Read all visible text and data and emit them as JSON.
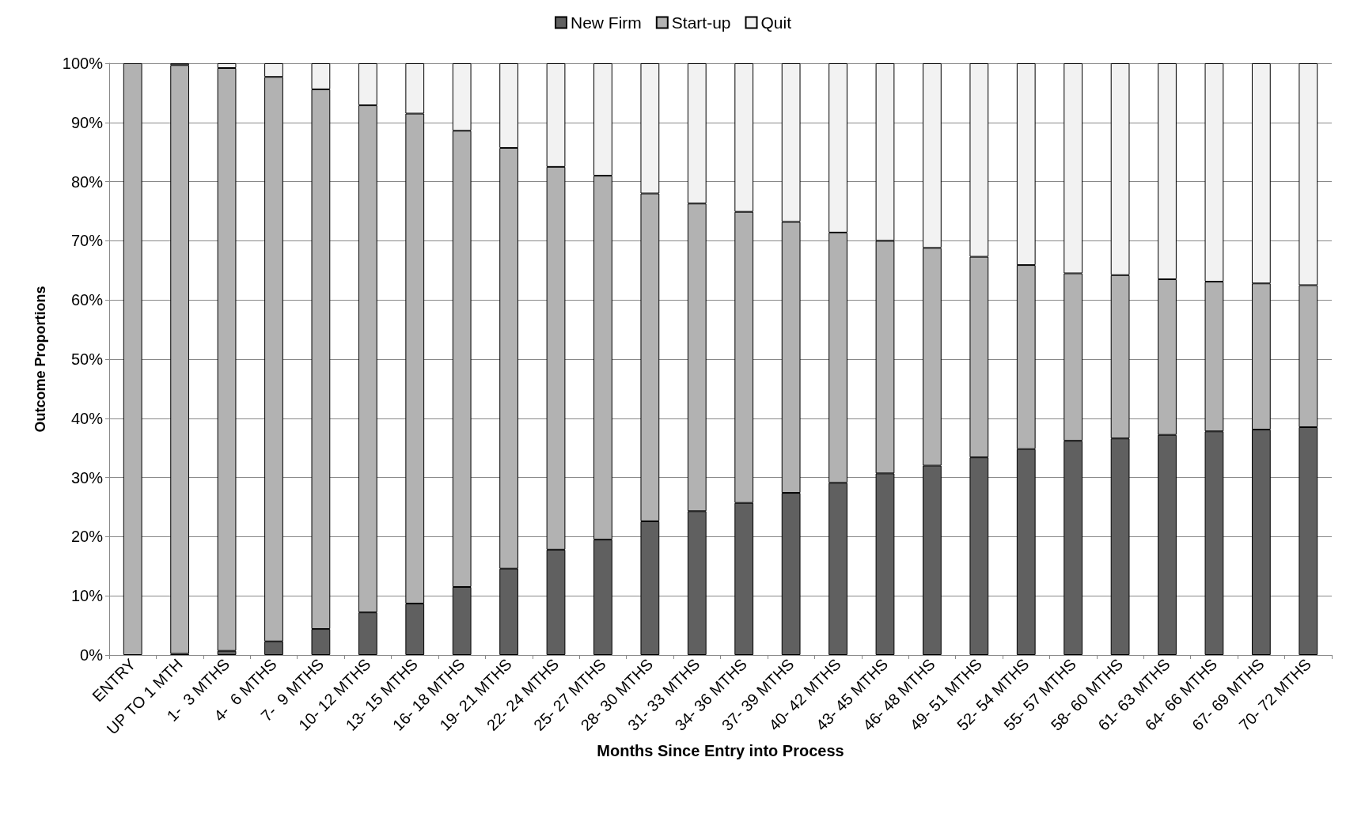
{
  "chart_data": {
    "type": "bar",
    "stacked": true,
    "xlabel": "Months Since Entry into Process",
    "ylabel": "Outcome Proportions",
    "categories": [
      "ENTRY",
      "UP TO 1 MTH",
      "1-  3 MTHS",
      "4-  6 MTHS",
      "7-  9 MTHS",
      "10- 12 MTHS",
      "13- 15 MTHS",
      "16- 18 MTHS",
      "19- 21 MTHS",
      "22- 24 MTHS",
      "25- 27 MTHS",
      "28- 30 MTHS",
      "31- 33 MTHS",
      "34- 36 MTHS",
      "37- 39 MTHS",
      "40- 42 MTHS",
      "43- 45 MTHS",
      "46- 48 MTHS",
      "49- 51 MTHS",
      "52- 54 MTHS",
      "55- 57 MTHS",
      "58- 60 MTHS",
      "61- 63 MTHS",
      "64- 66 MTHS",
      "67- 69 MTHS",
      "70- 72 MTHS"
    ],
    "series": [
      {
        "name": "New Firm",
        "color": "#606060",
        "values": [
          0,
          0.2,
          0.7,
          2.3,
          4.4,
          7.2,
          8.7,
          11.5,
          14.6,
          17.8,
          19.5,
          22.6,
          24.3,
          25.7,
          27.4,
          29.1,
          30.7,
          32.0,
          33.4,
          34.8,
          36.2,
          36.6,
          37.2,
          37.8,
          38.1,
          38.5
        ]
      },
      {
        "name": "Start-up",
        "color": "#b2b2b2",
        "values": [
          100,
          99.5,
          98.5,
          95.4,
          91.2,
          85.7,
          82.8,
          77.1,
          71.1,
          64.7,
          61.5,
          55.4,
          52.0,
          49.2,
          45.8,
          42.3,
          39.3,
          36.8,
          33.9,
          31.1,
          28.3,
          27.6,
          26.3,
          25.3,
          24.7,
          24.0
        ]
      },
      {
        "name": "Quit",
        "color": "#f2f2f2",
        "values": [
          0,
          0.3,
          0.8,
          2.3,
          4.4,
          7.1,
          8.5,
          11.4,
          14.3,
          17.5,
          19.0,
          22.0,
          23.7,
          25.1,
          26.8,
          28.6,
          30.0,
          31.2,
          32.7,
          34.1,
          35.5,
          35.8,
          36.5,
          36.9,
          37.2,
          37.5
        ]
      }
    ],
    "ylim": [
      0,
      100
    ],
    "yticks": [
      {
        "value": 0,
        "label": "0%"
      },
      {
        "value": 10,
        "label": "10%"
      },
      {
        "value": 20,
        "label": "20%"
      },
      {
        "value": 30,
        "label": "30%"
      },
      {
        "value": 40,
        "label": "40%"
      },
      {
        "value": 50,
        "label": "50%"
      },
      {
        "value": 60,
        "label": "60%"
      },
      {
        "value": 70,
        "label": "70%"
      },
      {
        "value": 80,
        "label": "80%"
      },
      {
        "value": 90,
        "label": "90%"
      },
      {
        "value": 100,
        "label": "100%"
      }
    ],
    "grid": "y",
    "legend": "top"
  }
}
